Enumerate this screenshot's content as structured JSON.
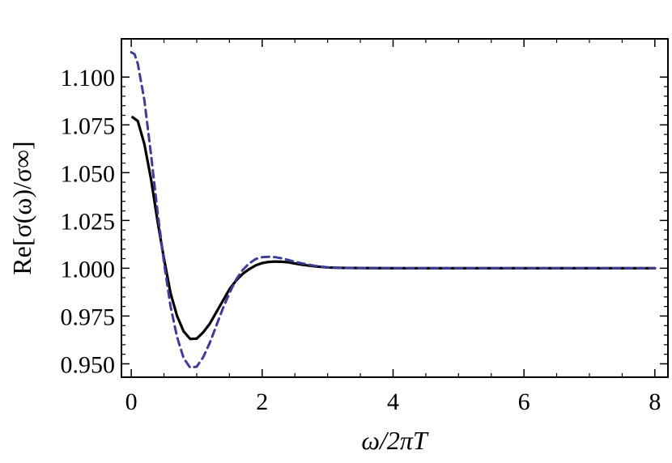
{
  "chart_data": {
    "type": "line",
    "xlabel": "ω/2πT",
    "ylabel": "Re[σ(ω)/σ∞]",
    "xlim": [
      -0.15,
      8.2
    ],
    "ylim": [
      0.943,
      1.12
    ],
    "x_ticks": [
      0,
      2,
      4,
      6,
      8
    ],
    "y_ticks": [
      0.95,
      0.975,
      1.0,
      1.025,
      1.05,
      1.075,
      1.1
    ],
    "x_tick_labels": [
      "0",
      "2",
      "4",
      "6",
      "8"
    ],
    "y_tick_labels": [
      "0.950",
      "0.975",
      "1.000",
      "1.025",
      "1.050",
      "1.075",
      "1.100"
    ],
    "grid": false,
    "series": [
      {
        "color": "#000000",
        "style": "solid",
        "x": [
          0.02,
          0.1,
          0.2,
          0.3,
          0.4,
          0.5,
          0.6,
          0.7,
          0.8,
          0.9,
          1.0,
          1.1,
          1.2,
          1.3,
          1.4,
          1.5,
          1.6,
          1.7,
          1.8,
          1.9,
          2.0,
          2.1,
          2.2,
          2.3,
          2.4,
          2.5,
          2.6,
          2.8,
          3.0,
          3.2,
          3.5,
          4.0,
          5.0,
          6.0,
          7.0,
          8.0
        ],
        "y": [
          1.079,
          1.077,
          1.065,
          1.047,
          1.025,
          1.005,
          0.987,
          0.975,
          0.967,
          0.963,
          0.9632,
          0.9665,
          0.971,
          0.977,
          0.983,
          0.989,
          0.9935,
          0.997,
          0.9995,
          1.0015,
          1.0027,
          1.0033,
          1.0035,
          1.0034,
          1.0031,
          1.0025,
          1.0019,
          1.001,
          1.0004,
          1.0002,
          1.0001,
          1.0,
          1.0,
          1.0,
          1.0,
          1.0
        ]
      },
      {
        "color": "#3d3d96",
        "style": "dashed",
        "x": [
          0.0,
          0.05,
          0.1,
          0.2,
          0.3,
          0.4,
          0.5,
          0.6,
          0.7,
          0.8,
          0.9,
          1.0,
          1.1,
          1.2,
          1.3,
          1.4,
          1.5,
          1.6,
          1.7,
          1.8,
          1.9,
          2.0,
          2.1,
          2.2,
          2.3,
          2.4,
          2.5,
          2.6,
          2.8,
          3.0,
          3.2,
          3.5,
          4.0,
          5.0,
          6.0,
          7.0,
          8.0
        ],
        "y": [
          1.113,
          1.112,
          1.107,
          1.088,
          1.06,
          1.03,
          1.003,
          0.98,
          0.964,
          0.953,
          0.948,
          0.9485,
          0.9535,
          0.961,
          0.97,
          0.979,
          0.987,
          0.994,
          0.999,
          1.0025,
          1.0048,
          1.0058,
          1.006,
          1.0058,
          1.0052,
          1.0043,
          1.0034,
          1.0026,
          1.0013,
          1.0005,
          1.0002,
          1.0001,
          1.0,
          1.0,
          1.0,
          1.0,
          1.0
        ]
      }
    ]
  }
}
